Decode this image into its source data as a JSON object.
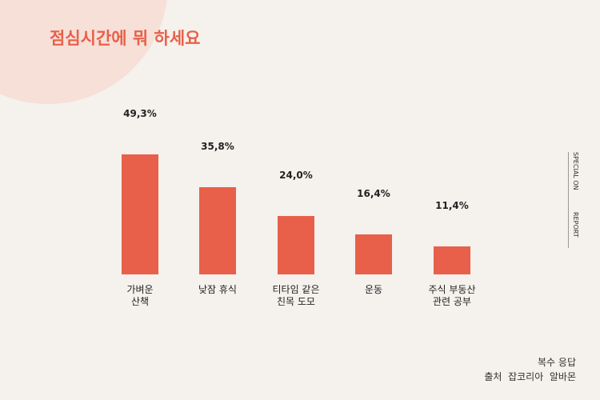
{
  "chart_data": {
    "type": "bar",
    "title": "점심시간에 뭐 하세요",
    "categories": [
      "가벼운\n산책",
      "낮잠 휴식",
      "티타임 같은\n친목 도모",
      "운동",
      "주식 부동산\n관련 공부"
    ],
    "values": [
      49.3,
      35.8,
      24.0,
      16.4,
      11.4
    ],
    "value_labels": [
      "49,3%",
      "35,8%",
      "24,0%",
      "16,4%",
      "11,4%"
    ],
    "color": "#e8604a",
    "note": "복수 응답",
    "source": "출처  잡코리아  알바몬",
    "side_label": [
      "SPECIAL ON",
      "REPORT"
    ]
  }
}
